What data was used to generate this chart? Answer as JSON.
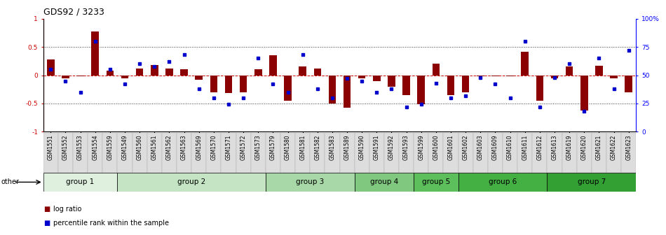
{
  "title": "GDS92 / 3233",
  "samples": [
    "GSM1551",
    "GSM1552",
    "GSM1553",
    "GSM1554",
    "GSM1559",
    "GSM1549",
    "GSM1560",
    "GSM1561",
    "GSM1562",
    "GSM1563",
    "GSM1569",
    "GSM1570",
    "GSM1571",
    "GSM1572",
    "GSM1573",
    "GSM1579",
    "GSM1580",
    "GSM1581",
    "GSM1582",
    "GSM1583",
    "GSM1589",
    "GSM1590",
    "GSM1591",
    "GSM1592",
    "GSM1593",
    "GSM1599",
    "GSM1600",
    "GSM1601",
    "GSM1602",
    "GSM1603",
    "GSM1609",
    "GSM1610",
    "GSM1611",
    "GSM1612",
    "GSM1613",
    "GSM1619",
    "GSM1620",
    "GSM1621",
    "GSM1622",
    "GSM1623"
  ],
  "log_ratio": [
    0.28,
    -0.05,
    -0.02,
    0.78,
    0.08,
    -0.05,
    0.12,
    0.18,
    0.12,
    0.1,
    -0.08,
    -0.3,
    -0.32,
    -0.3,
    0.1,
    0.35,
    -0.45,
    0.15,
    0.12,
    -0.5,
    -0.58,
    -0.05,
    -0.1,
    -0.2,
    -0.35,
    -0.52,
    0.2,
    -0.35,
    -0.3,
    -0.02,
    -0.02,
    -0.02,
    0.42,
    -0.45,
    -0.05,
    0.15,
    -0.62,
    0.17,
    -0.05,
    -0.3
  ],
  "percentile": [
    55,
    45,
    35,
    80,
    55,
    42,
    60,
    58,
    62,
    68,
    38,
    30,
    24,
    30,
    65,
    42,
    35,
    68,
    38,
    30,
    47,
    45,
    35,
    38,
    22,
    24,
    43,
    30,
    32,
    48,
    42,
    30,
    80,
    22,
    48,
    60,
    18,
    65,
    38,
    72
  ],
  "groups": [
    {
      "name": "group 1",
      "start": 0,
      "end": 5,
      "color": "#dff0df"
    },
    {
      "name": "group 2",
      "start": 5,
      "end": 15,
      "color": "#c4e4c4"
    },
    {
      "name": "group 3",
      "start": 15,
      "end": 21,
      "color": "#a8d8a8"
    },
    {
      "name": "group 4",
      "start": 21,
      "end": 25,
      "color": "#80c880"
    },
    {
      "name": "group 5",
      "start": 25,
      "end": 28,
      "color": "#5cbf5c"
    },
    {
      "name": "group 6",
      "start": 28,
      "end": 34,
      "color": "#44b044"
    },
    {
      "name": "group 7",
      "start": 34,
      "end": 40,
      "color": "#33a033"
    }
  ],
  "bar_color": "#8b0000",
  "dot_color": "#0000cc",
  "hline_color": "#cc0000",
  "dotline_color": "#333333",
  "ylim": [
    -1,
    1
  ],
  "y2lim": [
    0,
    100
  ],
  "yticks_left": [
    -1,
    -0.5,
    0,
    0.5,
    1
  ],
  "ytick_labels_left": [
    "-1",
    "-0.5",
    "0",
    "0.5",
    "1"
  ],
  "yticks_right": [
    0,
    25,
    50,
    75,
    100
  ],
  "ytick_labels_right": [
    "0",
    "25",
    "50",
    "75",
    "100%"
  ],
  "legend_items": [
    {
      "label": "log ratio",
      "color": "#8b0000",
      "marker": "s"
    },
    {
      "label": "percentile rank within the sample",
      "color": "#0000cc",
      "marker": "s"
    }
  ],
  "bg_color": "#ffffff",
  "plot_bg_color": "#ffffff",
  "tick_label_fontsize": 6.5,
  "sample_label_fontsize": 5.5,
  "group_label_fontsize": 7.5
}
